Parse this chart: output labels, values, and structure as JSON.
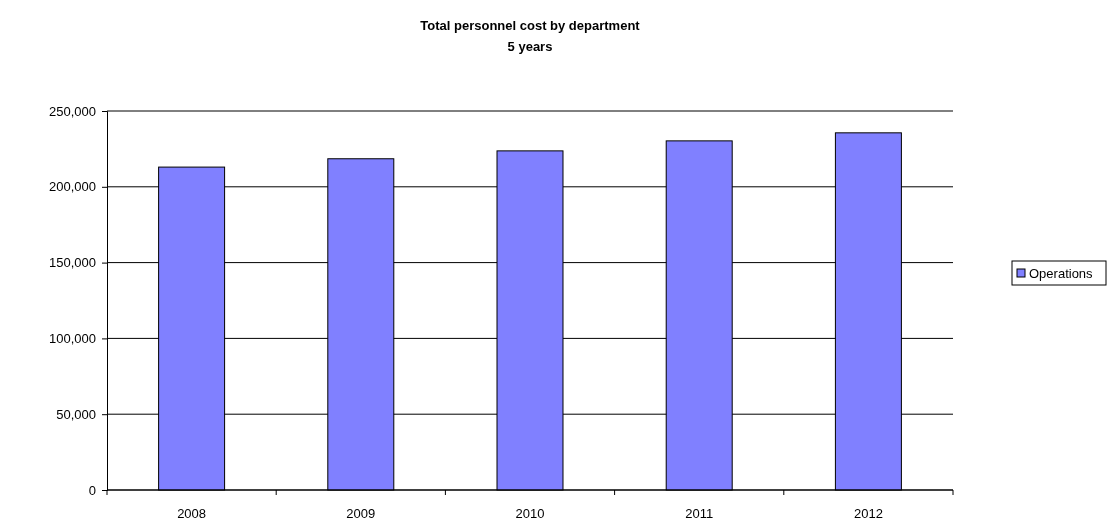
{
  "chart_data": {
    "type": "bar",
    "title": "Total personnel cost by department\n5 years",
    "categories": [
      "2008",
      "2009",
      "2010",
      "2011",
      "2012"
    ],
    "series": [
      {
        "name": "Operations",
        "color": "#8080ff",
        "values": [
          213000,
          218500,
          223700,
          230300,
          235600
        ]
      }
    ],
    "ylim": [
      0,
      250000
    ],
    "yticks": [
      {
        "value": 0,
        "label": "0"
      },
      {
        "value": 50000,
        "label": "50,000"
      },
      {
        "value": 100000,
        "label": "100,000"
      },
      {
        "value": 150000,
        "label": "150,000"
      },
      {
        "value": 200000,
        "label": "200,000"
      },
      {
        "value": 250000,
        "label": "250,000"
      }
    ],
    "grid": "y",
    "legend": "right"
  }
}
